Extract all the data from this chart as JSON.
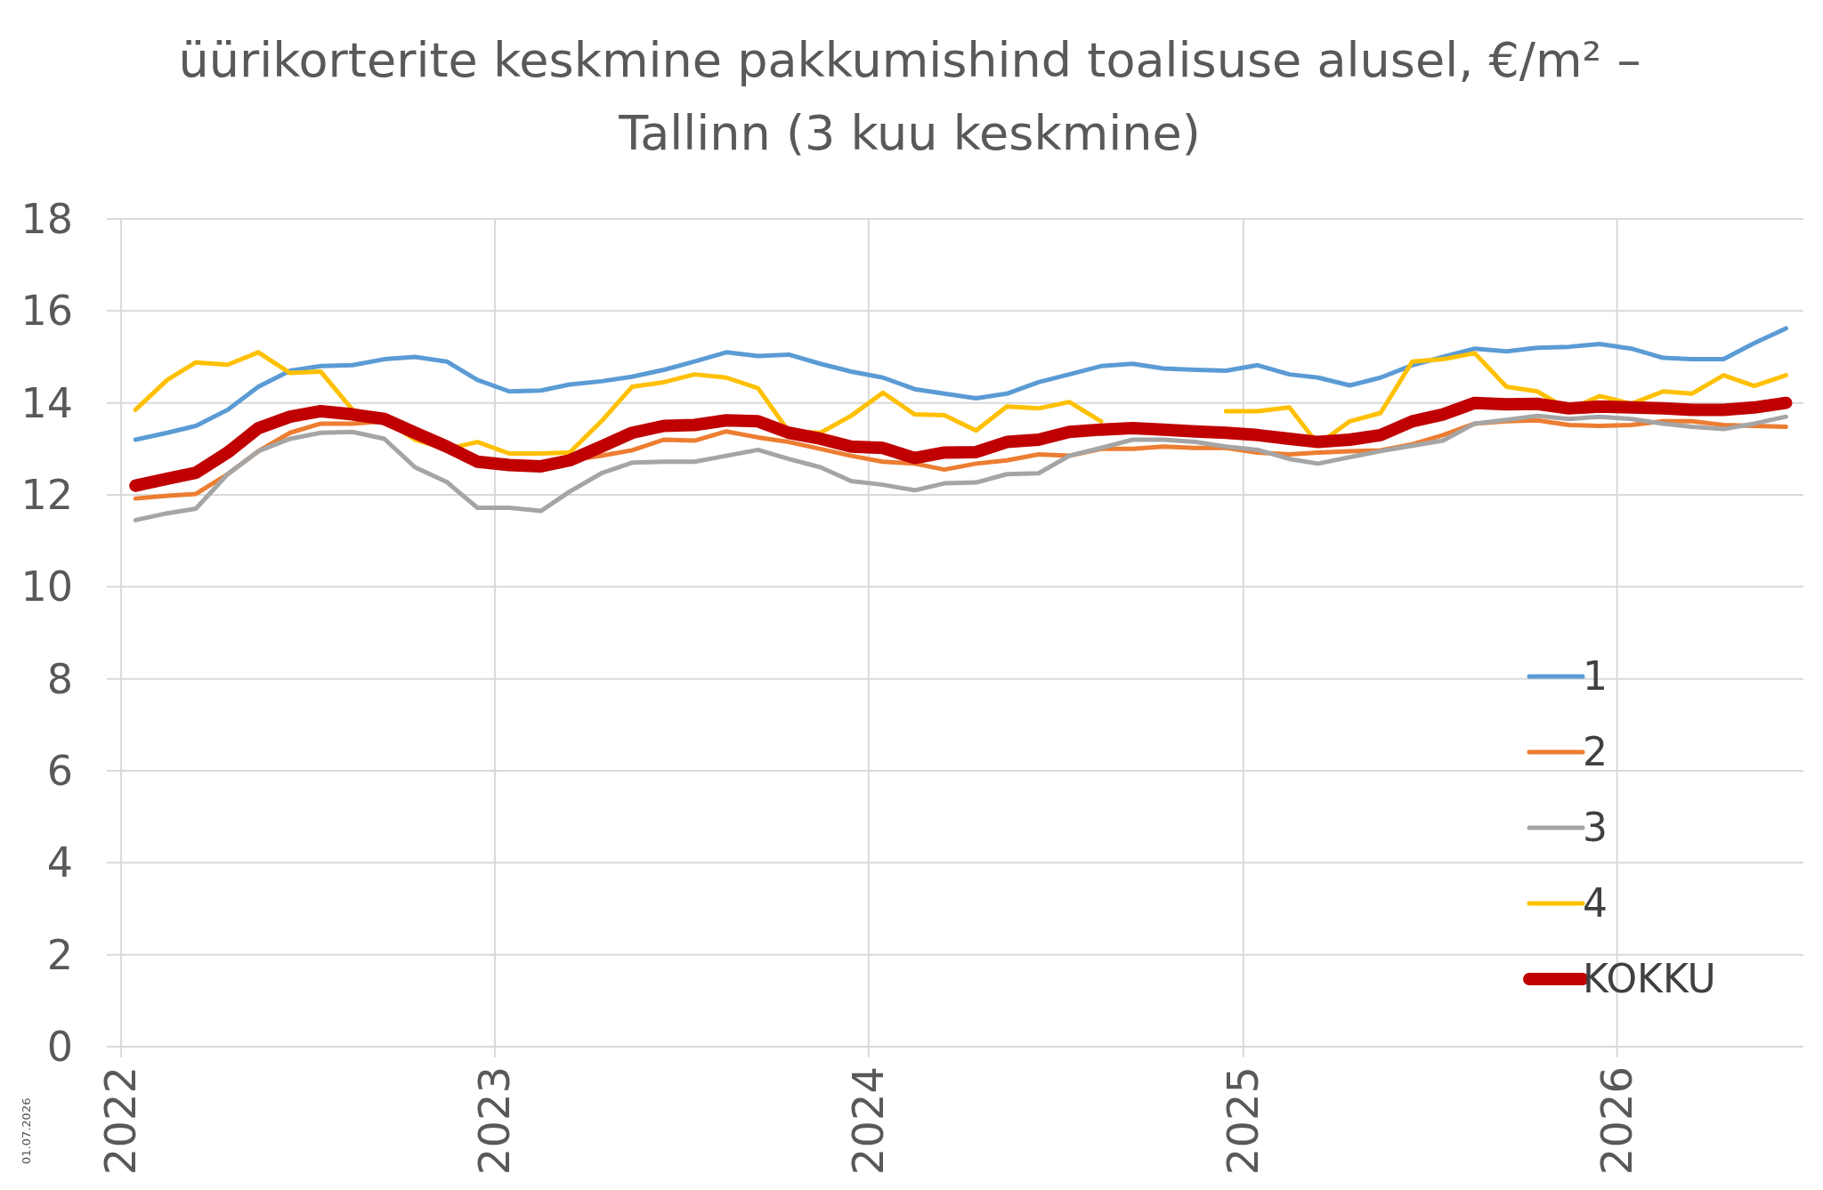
{
  "chart_data": {
    "type": "line",
    "title": "üürikorterite keskmine pakkumishind toalisuse alusel, €/m² – Tallinn (3 kuu keskmine)",
    "x": [
      "2022-01-15",
      "2022-02-15",
      "2022-03-15",
      "2022-04-15",
      "2022-05-15",
      "2022-06-15",
      "2022-07-15",
      "2022-08-15",
      "2022-09-15",
      "2022-10-15",
      "2022-11-15",
      "2022-12-15",
      "2023-01-15",
      "2023-02-15",
      "2023-03-15",
      "2023-04-15",
      "2023-05-15",
      "2023-06-15",
      "2023-07-15",
      "2023-08-15",
      "2023-09-15",
      "2023-10-15",
      "2023-11-15",
      "2023-12-15",
      "2024-01-15",
      "2024-02-15",
      "2024-03-15",
      "2024-04-15",
      "2024-05-15",
      "2024-06-15",
      "2024-07-15",
      "2024-08-15",
      "2024-09-15",
      "2024-10-15",
      "2024-11-15",
      "2024-12-15",
      "2025-01-15",
      "2025-02-15",
      "2025-03-15",
      "2025-04-15",
      "2025-05-15",
      "2025-06-15",
      "2025-07-15",
      "2025-08-15",
      "2025-09-15",
      "2025-10-15",
      "2025-11-15",
      "2025-12-15",
      "2026-01-15",
      "2026-02-15",
      "2026-03-15",
      "2026-04-15",
      "2026-05-15",
      "2026-06-15"
    ],
    "series": [
      {
        "name": "1",
        "color": "#5b9bd5",
        "values": [
          13.2,
          13.35,
          13.5,
          13.85,
          14.35,
          14.7,
          14.8,
          14.82,
          14.95,
          15.0,
          14.9,
          14.5,
          14.25,
          14.27,
          14.4,
          14.47,
          14.57,
          14.72,
          14.9,
          15.1,
          15.02,
          15.05,
          14.85,
          14.68,
          14.55,
          14.3,
          14.2,
          14.1,
          14.2,
          14.45,
          14.62,
          14.8,
          14.85,
          14.75,
          14.72,
          14.7,
          14.82,
          14.62,
          14.55,
          14.38,
          14.55,
          14.82,
          15.0,
          15.18,
          15.12,
          15.2,
          15.22,
          15.28,
          15.18,
          14.98,
          14.95,
          14.95,
          15.3,
          15.62
        ]
      },
      {
        "name": "2",
        "color": "#ed7d31",
        "values": [
          11.92,
          11.98,
          12.02,
          12.45,
          12.95,
          13.35,
          13.55,
          13.55,
          13.6,
          13.3,
          13.0,
          12.7,
          12.62,
          12.62,
          12.75,
          12.85,
          12.97,
          13.2,
          13.18,
          13.38,
          13.25,
          13.15,
          13.0,
          12.85,
          12.72,
          12.68,
          12.55,
          12.68,
          12.75,
          12.88,
          12.85,
          13.0,
          13.0,
          13.05,
          13.02,
          13.02,
          12.92,
          12.88,
          12.92,
          12.95,
          12.97,
          13.1,
          13.3,
          13.55,
          13.6,
          13.62,
          13.52,
          13.5,
          13.52,
          13.6,
          13.6,
          13.52,
          13.5,
          13.48
        ]
      },
      {
        "name": "3",
        "color": "#a5a5a5",
        "values": [
          11.45,
          11.6,
          11.7,
          12.45,
          12.95,
          13.22,
          13.35,
          13.37,
          13.22,
          12.6,
          12.28,
          11.72,
          11.72,
          11.65,
          12.07,
          12.47,
          12.7,
          12.72,
          12.72,
          12.85,
          12.98,
          12.78,
          12.6,
          12.3,
          12.22,
          12.1,
          12.25,
          12.27,
          12.45,
          12.47,
          12.85,
          13.02,
          13.2,
          13.2,
          13.15,
          13.05,
          12.98,
          12.78,
          12.68,
          12.82,
          12.95,
          13.07,
          13.18,
          13.55,
          13.63,
          13.72,
          13.65,
          13.7,
          13.65,
          13.55,
          13.48,
          13.43,
          13.55,
          13.7
        ]
      },
      {
        "name": "4",
        "color": "#ffc000",
        "values": [
          13.85,
          14.5,
          14.88,
          14.83,
          15.1,
          14.65,
          14.68,
          13.85,
          13.62,
          13.2,
          13.0,
          13.15,
          12.9,
          12.9,
          12.92,
          13.6,
          14.35,
          14.45,
          14.62,
          14.55,
          14.32,
          13.38,
          13.35,
          13.72,
          14.22,
          13.75,
          13.73,
          13.4,
          13.92,
          13.88,
          14.02,
          13.6,
          null,
          null,
          null,
          13.82,
          13.82,
          13.9,
          13.1,
          13.6,
          13.78,
          14.9,
          14.95,
          15.08,
          14.35,
          14.25,
          13.85,
          14.15,
          13.98,
          14.25,
          14.2,
          14.6,
          14.37,
          14.6
        ]
      },
      {
        "name": "KOKKU",
        "color": "#c00000",
        "values": [
          12.2,
          12.35,
          12.48,
          12.92,
          13.45,
          13.7,
          13.82,
          13.75,
          13.65,
          13.35,
          13.05,
          12.72,
          12.65,
          12.62,
          12.75,
          13.05,
          13.35,
          13.5,
          13.52,
          13.62,
          13.6,
          13.35,
          13.22,
          13.05,
          13.02,
          12.8,
          12.92,
          12.93,
          13.15,
          13.2,
          13.37,
          13.42,
          13.45,
          13.42,
          13.38,
          13.35,
          13.3,
          13.22,
          13.15,
          13.2,
          13.3,
          13.6,
          13.75,
          14.0,
          13.97,
          13.98,
          13.88,
          13.92,
          13.9,
          13.88,
          13.85,
          13.85,
          13.9,
          14.0
        ]
      }
    ],
    "xlim": [
      "2021-12-18",
      "2026-07-02"
    ],
    "xticks": [
      {
        "value": "2022-01-01",
        "label": "2022"
      },
      {
        "value": "2023-01-01",
        "label": "2023"
      },
      {
        "value": "2024-01-01",
        "label": "2024"
      },
      {
        "value": "2025-01-01",
        "label": "2025"
      },
      {
        "value": "2026-01-01",
        "label": "2026"
      }
    ],
    "ylim": [
      0,
      18
    ],
    "yticks": [
      0,
      2,
      4,
      6,
      8,
      10,
      12,
      14,
      16,
      18
    ],
    "grid": true,
    "legend": "bottom right",
    "marker": "none",
    "line_style": "solid",
    "annotations": [
      "01.07.2026"
    ]
  }
}
